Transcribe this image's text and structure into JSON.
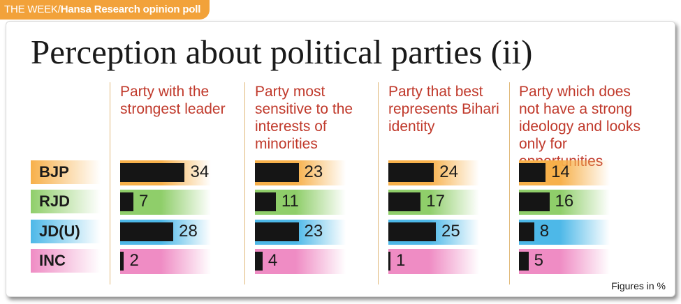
{
  "banner": {
    "publication": "THE WEEK/",
    "source": "Hansa Research opinion poll"
  },
  "title": "Perception about political parties (ii)",
  "footnote": "Figures in %",
  "colors": {
    "banner": "#f2a23a",
    "heading_text": "#c0392b",
    "bar": "#151515",
    "BJP": "#f7b04a",
    "RJD": "#8fce6a",
    "JDU": "#4db8e8",
    "INC": "#ef8cc4"
  },
  "chart_data": {
    "type": "bar",
    "title": "Perception about political parties (ii)",
    "unit": "Figures in %",
    "categories": [
      "BJP",
      "RJD",
      "JD(U)",
      "INC"
    ],
    "series": [
      {
        "name": "Party with the strongest leader",
        "values": [
          34,
          7,
          28,
          2
        ]
      },
      {
        "name": "Party most sensitive to the interests of minorities",
        "values": [
          23,
          11,
          23,
          4
        ]
      },
      {
        "name": "Party that best represents Bihari identity",
        "values": [
          24,
          17,
          25,
          1
        ]
      },
      {
        "name": "Party which does not have a strong ideology and looks only for opportunities",
        "values": [
          14,
          16,
          8,
          5
        ]
      }
    ]
  },
  "columns": [
    {
      "heading": "Party with the strongest leader"
    },
    {
      "heading": "Party most sensitive to the interests of minorities"
    },
    {
      "heading": "Party that best represents Bihari identity"
    },
    {
      "heading": "Party which does not have a strong ideology and looks only for opportunities"
    }
  ]
}
